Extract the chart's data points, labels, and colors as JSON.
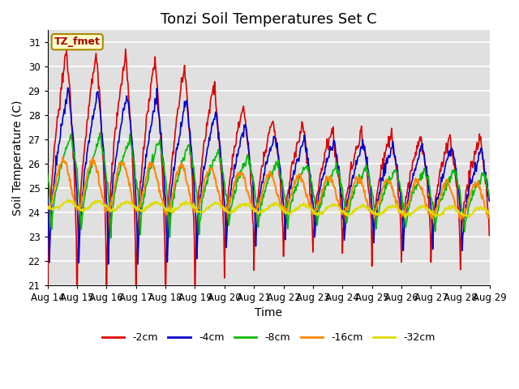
{
  "title": "Tonzi Soil Temperatures Set C",
  "xlabel": "Time",
  "ylabel": "Soil Temperature (C)",
  "ylim": [
    21.0,
    31.5
  ],
  "yticks": [
    21.0,
    22.0,
    23.0,
    24.0,
    25.0,
    26.0,
    27.0,
    28.0,
    29.0,
    30.0,
    31.0
  ],
  "xtick_labels": [
    "Aug 14",
    "Aug 15",
    "Aug 16",
    "Aug 17",
    "Aug 18",
    "Aug 19",
    "Aug 20",
    "Aug 21",
    "Aug 22",
    "Aug 23",
    "Aug 24",
    "Aug 25",
    "Aug 26",
    "Aug 27",
    "Aug 28",
    "Aug 29"
  ],
  "series": {
    "-2cm": {
      "color": "#dd0000",
      "linewidth": 1.2
    },
    "-4cm": {
      "color": "#0000cc",
      "linewidth": 1.2
    },
    "-8cm": {
      "color": "#00bb00",
      "linewidth": 1.2
    },
    "-16cm": {
      "color": "#ff8800",
      "linewidth": 1.5
    },
    "-32cm": {
      "color": "#dddd00",
      "linewidth": 1.5
    }
  },
  "legend_label": "TZ_fmet",
  "legend_bg": "#ffffcc",
  "legend_edge": "#aa8800",
  "bg_color": "#e0e0e0",
  "grid_color": "#ffffff",
  "title_fontsize": 13,
  "axis_fontsize": 10,
  "tick_fontsize": 8.5,
  "n_days": 15,
  "pts_per_day": 48
}
